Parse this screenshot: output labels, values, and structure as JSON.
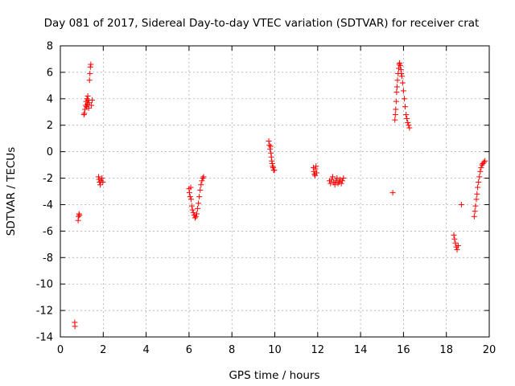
{
  "chart_data": {
    "type": "scatter",
    "title": "Day 081 of 2017, Sidereal Day-to-day VTEC variation (SDTVAR) for receiver crat",
    "xlabel": "GPS time / hours",
    "ylabel": "SDTVAR / TECUs",
    "xlim": [
      0,
      20
    ],
    "ylim": [
      -14,
      8
    ],
    "xticks": [
      0,
      2,
      4,
      6,
      8,
      10,
      12,
      14,
      16,
      18,
      20
    ],
    "yticks": [
      -14,
      -12,
      -10,
      -8,
      -6,
      -4,
      -2,
      0,
      2,
      4,
      6,
      8
    ],
    "grid": true,
    "marker": "+",
    "color": "#ff0000",
    "series": [
      {
        "name": "SDTVAR",
        "x": [
          0.67,
          0.68,
          0.83,
          0.85,
          0.87,
          0.89,
          1.1,
          1.12,
          1.15,
          1.18,
          1.2,
          1.22,
          1.24,
          1.26,
          1.28,
          1.3,
          1.32,
          1.34,
          1.36,
          1.38,
          1.4,
          1.42,
          1.45,
          1.48,
          1.78,
          1.8,
          1.83,
          1.86,
          1.9,
          1.94,
          1.98,
          6.0,
          6.02,
          6.05,
          6.08,
          6.1,
          6.13,
          6.16,
          6.2,
          6.24,
          6.28,
          6.32,
          6.36,
          6.4,
          6.44,
          6.48,
          6.52,
          6.56,
          6.6,
          6.64,
          6.68,
          9.72,
          9.75,
          9.78,
          9.8,
          9.82,
          9.84,
          9.86,
          9.88,
          9.9,
          9.92,
          9.95,
          9.98,
          11.8,
          11.82,
          11.85,
          11.88,
          11.9,
          11.92,
          11.95,
          12.55,
          12.6,
          12.65,
          12.7,
          12.75,
          12.8,
          12.85,
          12.9,
          12.95,
          13.0,
          13.05,
          13.1,
          13.15,
          13.2,
          15.5,
          15.6,
          15.62,
          15.64,
          15.66,
          15.68,
          15.7,
          15.72,
          15.75,
          15.78,
          15.8,
          15.82,
          15.85,
          15.88,
          15.9,
          15.93,
          15.96,
          16.0,
          16.04,
          16.08,
          16.12,
          16.16,
          16.2,
          16.24,
          16.28,
          18.35,
          18.38,
          18.42,
          18.46,
          18.5,
          18.55,
          18.7,
          19.3,
          19.33,
          19.36,
          19.4,
          19.43,
          19.46,
          19.5,
          19.54,
          19.58,
          19.62,
          19.66,
          19.7,
          19.75,
          19.8
        ],
        "y": [
          -12.9,
          -13.2,
          -5.2,
          -4.9,
          -4.7,
          -4.8,
          2.8,
          2.9,
          3.2,
          3.5,
          3.8,
          3.4,
          4.0,
          3.6,
          4.2,
          3.9,
          3.3,
          3.7,
          5.4,
          5.9,
          6.4,
          6.6,
          3.5,
          3.9,
          -1.9,
          -2.1,
          -2.3,
          -2.5,
          -2.2,
          -2.0,
          -2.3,
          -2.8,
          -3.1,
          -3.4,
          -2.7,
          -3.6,
          -4.1,
          -4.4,
          -4.6,
          -4.8,
          -5.0,
          -4.9,
          -4.7,
          -4.3,
          -3.9,
          -3.4,
          -2.9,
          -2.5,
          -2.2,
          -2.0,
          -1.9,
          0.8,
          0.5,
          0.2,
          0.4,
          -0.1,
          -0.4,
          -0.7,
          -0.9,
          -1.1,
          -1.2,
          -1.4,
          -1.4,
          -1.2,
          -1.5,
          -1.7,
          -1.8,
          -1.3,
          -1.1,
          -1.6,
          -2.2,
          -2.4,
          -2.1,
          -1.9,
          -2.3,
          -2.5,
          -2.2,
          -2.0,
          -2.4,
          -2.3,
          -2.1,
          -2.4,
          -2.2,
          -2.0,
          -3.1,
          2.4,
          2.8,
          3.2,
          3.8,
          4.5,
          4.9,
          5.4,
          5.9,
          6.3,
          6.6,
          6.7,
          6.5,
          6.2,
          5.9,
          5.7,
          5.2,
          4.6,
          4.0,
          3.4,
          2.8,
          2.5,
          2.2,
          2.0,
          1.8,
          -6.3,
          -6.6,
          -6.9,
          -7.2,
          -7.4,
          -7.1,
          -4.0,
          -4.9,
          -4.5,
          -4.1,
          -3.6,
          -3.2,
          -2.7,
          -2.3,
          -1.9,
          -1.5,
          -1.2,
          -1.0,
          -0.9,
          -0.8,
          -0.7
        ]
      }
    ]
  }
}
